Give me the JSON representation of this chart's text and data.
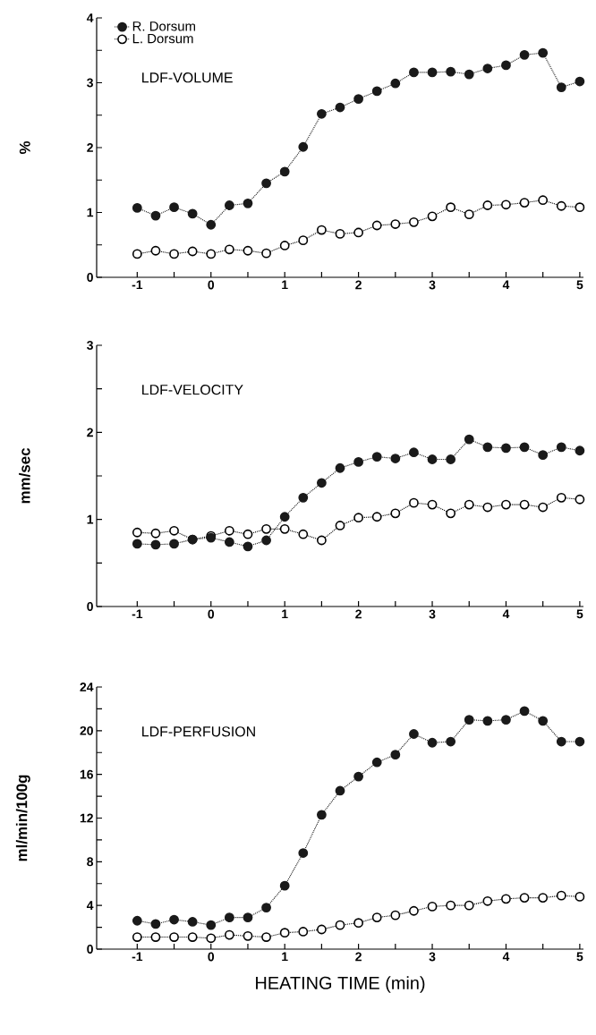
{
  "chart_data": [
    {
      "type": "line",
      "ylabel": "%",
      "annotations": [
        "LDF-VOLUME"
      ],
      "legend": "top left",
      "marker": "circle",
      "line_style": "dotted",
      "x": [
        -1,
        -0.75,
        -0.5,
        -0.25,
        0,
        0.25,
        0.5,
        0.75,
        1,
        1.25,
        1.5,
        1.75,
        2,
        2.25,
        2.5,
        2.75,
        3,
        3.25,
        3.5,
        3.75,
        4,
        4.25,
        4.5,
        4.75,
        5
      ],
      "series": [
        {
          "name": "R. Dorsum",
          "color": "#1a1a1a",
          "values": [
            1.07,
            0.95,
            1.08,
            0.98,
            0.81,
            1.11,
            1.14,
            1.45,
            1.63,
            2.01,
            2.52,
            2.62,
            2.75,
            2.87,
            2.99,
            3.16,
            3.16,
            3.17,
            3.13,
            3.22,
            3.27,
            3.43,
            3.46,
            2.93,
            3.02
          ]
        },
        {
          "name": "L. Dorsum",
          "color": "#000000",
          "values": [
            0.36,
            0.41,
            0.36,
            0.4,
            0.36,
            0.43,
            0.41,
            0.37,
            0.49,
            0.57,
            0.73,
            0.67,
            0.69,
            0.8,
            0.82,
            0.85,
            0.94,
            1.08,
            0.97,
            1.11,
            1.12,
            1.15,
            1.19,
            1.1,
            1.08
          ]
        }
      ],
      "xlim": [
        -1.55,
        5.05
      ],
      "ylim": [
        0,
        4
      ],
      "xticks": [
        -1,
        {
          "value": -0.5,
          "label": null
        },
        0,
        {
          "value": 0.5,
          "label": null
        },
        1,
        {
          "value": 1.5,
          "label": null
        },
        2,
        {
          "value": 2.5,
          "label": null
        },
        3,
        {
          "value": 3.5,
          "label": null
        },
        4,
        {
          "value": 4.5,
          "label": null
        },
        5
      ],
      "yticks": [
        0,
        {
          "value": 0.5,
          "label": null
        },
        1,
        {
          "value": 1.5,
          "label": null
        },
        2,
        {
          "value": 2.5,
          "label": null
        },
        3,
        {
          "value": 3.5,
          "label": null
        },
        4
      ]
    },
    {
      "type": "line",
      "ylabel": "mm/sec",
      "annotations": [
        "LDF-VELOCITY"
      ],
      "marker": "circle",
      "line_style": "dotted",
      "x": [
        -1,
        -0.75,
        -0.5,
        -0.25,
        0,
        0.25,
        0.5,
        0.75,
        1,
        1.25,
        1.5,
        1.75,
        2,
        2.25,
        2.5,
        2.75,
        3,
        3.25,
        3.5,
        3.75,
        4,
        4.25,
        4.5,
        4.75,
        5
      ],
      "series": [
        {
          "color": "#1a1a1a",
          "values": [
            0.72,
            0.71,
            0.72,
            0.77,
            0.79,
            0.74,
            0.69,
            0.76,
            1.03,
            1.25,
            1.42,
            1.59,
            1.66,
            1.72,
            1.7,
            1.77,
            1.69,
            1.69,
            1.92,
            1.83,
            1.82,
            1.83,
            1.74,
            1.83,
            1.79
          ]
        },
        {
          "color": "#000000",
          "values": [
            0.85,
            0.84,
            0.87,
            0.77,
            0.81,
            0.87,
            0.83,
            0.89,
            0.89,
            0.83,
            0.76,
            0.93,
            1.02,
            1.03,
            1.07,
            1.19,
            1.17,
            1.07,
            1.17,
            1.14,
            1.17,
            1.17,
            1.14,
            1.25,
            1.23
          ]
        }
      ],
      "xlim": [
        -1.55,
        5.05
      ],
      "ylim": [
        0,
        3
      ],
      "xticks": [
        -1,
        {
          "value": -0.5,
          "label": null
        },
        0,
        {
          "value": 0.5,
          "label": null
        },
        1,
        {
          "value": 1.5,
          "label": null
        },
        2,
        {
          "value": 2.5,
          "label": null
        },
        3,
        {
          "value": 3.5,
          "label": null
        },
        4,
        {
          "value": 4.5,
          "label": null
        },
        5
      ],
      "yticks": [
        0,
        {
          "value": 0.5,
          "label": null
        },
        1,
        {
          "value": 1.5,
          "label": null
        },
        2,
        {
          "value": 2.5,
          "label": null
        },
        3
      ]
    },
    {
      "type": "line",
      "ylabel": "ml/min/100g",
      "xlabel": "HEATING TIME (min)",
      "annotations": [
        "LDF-PERFUSION"
      ],
      "marker": "circle",
      "line_style": "dotted",
      "x": [
        -1,
        -0.75,
        -0.5,
        -0.25,
        0,
        0.25,
        0.5,
        0.75,
        1,
        1.25,
        1.5,
        1.75,
        2,
        2.25,
        2.5,
        2.75,
        3,
        3.25,
        3.5,
        3.75,
        4,
        4.25,
        4.5,
        4.75,
        5
      ],
      "series": [
        {
          "color": "#1a1a1a",
          "values": [
            2.6,
            2.3,
            2.7,
            2.5,
            2.2,
            2.9,
            2.9,
            3.8,
            5.8,
            8.8,
            12.3,
            14.5,
            15.8,
            17.1,
            17.8,
            19.7,
            18.9,
            19.0,
            21.0,
            20.9,
            21.0,
            21.8,
            20.9,
            19.0,
            19.0
          ]
        },
        {
          "color": "#000000",
          "values": [
            1.1,
            1.1,
            1.1,
            1.1,
            1.0,
            1.3,
            1.2,
            1.1,
            1.5,
            1.6,
            1.8,
            2.2,
            2.4,
            2.9,
            3.1,
            3.5,
            3.9,
            4.0,
            4.0,
            4.4,
            4.6,
            4.7,
            4.7,
            4.9,
            4.8
          ]
        }
      ],
      "xlim": [
        -1.55,
        5.05
      ],
      "ylim": [
        0,
        24
      ],
      "xticks": [
        -1,
        {
          "value": -0.5,
          "label": null
        },
        0,
        {
          "value": 0.5,
          "label": null
        },
        1,
        {
          "value": 1.5,
          "label": null
        },
        2,
        {
          "value": 2.5,
          "label": null
        },
        3,
        {
          "value": 3.5,
          "label": null
        },
        4,
        {
          "value": 4.5,
          "label": null
        },
        5
      ],
      "yticks": [
        0,
        {
          "value": 2,
          "label": null
        },
        4,
        {
          "value": 6,
          "label": null
        },
        8,
        {
          "value": 10,
          "label": null
        },
        12,
        {
          "value": 14,
          "label": null
        },
        16,
        {
          "value": 18,
          "label": null
        },
        20,
        {
          "value": 22,
          "label": null
        },
        24
      ]
    }
  ]
}
